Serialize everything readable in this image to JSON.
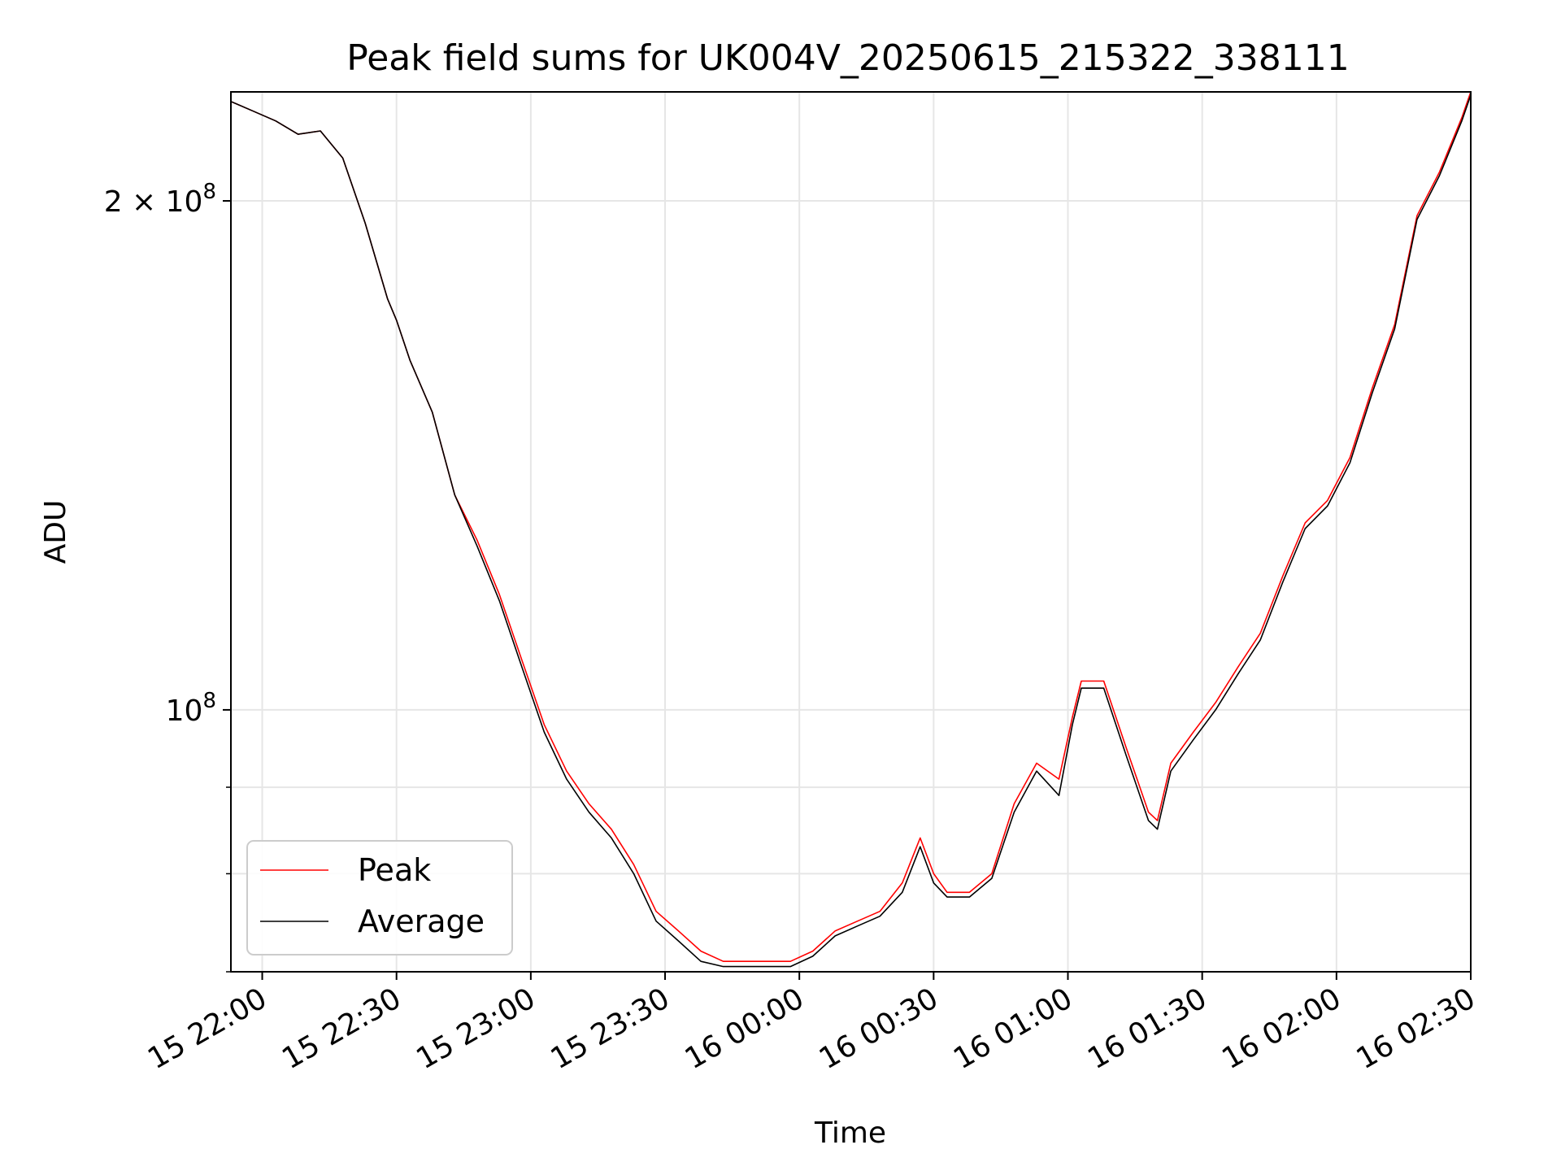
{
  "chart_data": {
    "type": "line",
    "title": "Peak field sums for UK004V_20250615_215322_338111",
    "xlabel": "Time",
    "ylabel": "ADU",
    "yscale": "log",
    "grid": true,
    "legend_position": "lower-left",
    "xlim": [
      "2025-06-15 21:53",
      "2025-06-16 02:30"
    ],
    "ylim": [
      70000000,
      232000000
    ],
    "x_ticks": [
      "15 22:00",
      "15 22:30",
      "15 23:00",
      "15 23:30",
      "16 00:00",
      "16 00:30",
      "16 01:00",
      "16 01:30",
      "16 02:00",
      "16 02:30"
    ],
    "y_tick_labels": [
      {
        "value": 200000000,
        "base": "2 × 10",
        "exp": "8"
      },
      {
        "value": 100000000,
        "base": "10",
        "exp": "8"
      }
    ],
    "y_minor_ticks": [
      90000000,
      80000000,
      70000000
    ],
    "x": [
      "21:53",
      "21:58",
      "22:03",
      "22:08",
      "22:13",
      "22:18",
      "22:23",
      "22:28",
      "22:30",
      "22:33",
      "22:38",
      "22:43",
      "22:48",
      "22:53",
      "22:58",
      "23:03",
      "23:08",
      "23:13",
      "23:18",
      "23:23",
      "23:28",
      "23:33",
      "23:38",
      "23:43",
      "23:48",
      "23:53",
      "23:58",
      "00:03",
      "00:08",
      "00:13",
      "00:18",
      "00:23",
      "00:27",
      "00:30",
      "00:33",
      "00:38",
      "00:43",
      "00:48",
      "00:53",
      "00:58",
      "01:01",
      "01:03",
      "01:08",
      "01:13",
      "01:18",
      "01:20",
      "01:23",
      "01:28",
      "01:33",
      "01:38",
      "01:43",
      "01:48",
      "01:53",
      "01:58",
      "02:03",
      "02:08",
      "02:13",
      "02:18",
      "02:23",
      "02:28",
      "02:30"
    ],
    "series": [
      {
        "name": "Peak",
        "color": "#ff0000",
        "values": [
          229000000,
          226000000,
          223000000,
          219000000,
          220000000,
          212000000,
          194000000,
          175000000,
          170000000,
          161000000,
          150000000,
          134000000,
          126000000,
          117000000,
          107000000,
          98000000,
          92000000,
          88000000,
          85000000,
          81000000,
          76000000,
          74000000,
          72000000,
          71000000,
          71000000,
          71000000,
          71000000,
          72000000,
          74000000,
          75000000,
          76000000,
          79000000,
          84000000,
          80000000,
          78000000,
          78000000,
          80000000,
          88000000,
          93000000,
          91000000,
          99000000,
          104000000,
          104000000,
          95000000,
          87000000,
          86000000,
          93000000,
          97000000,
          101000000,
          106000000,
          111000000,
          120000000,
          129000000,
          133000000,
          141000000,
          155000000,
          169000000,
          196000000,
          208000000,
          224000000,
          232000000
        ]
      },
      {
        "name": "Average",
        "color": "#000000",
        "values": [
          229000000,
          226000000,
          223000000,
          219000000,
          220000000,
          212000000,
          194000000,
          175000000,
          170000000,
          161000000,
          150000000,
          134000000,
          125000000,
          116000000,
          106000000,
          97000000,
          91000000,
          87000000,
          84000000,
          80000000,
          75000000,
          73000000,
          71000000,
          70500000,
          70500000,
          70500000,
          70500000,
          71500000,
          73500000,
          74500000,
          75500000,
          78000000,
          83000000,
          79000000,
          77500000,
          77500000,
          79500000,
          87000000,
          92000000,
          89000000,
          98000000,
          103000000,
          103000000,
          94000000,
          86000000,
          85000000,
          92000000,
          96000000,
          100000000,
          105000000,
          110000000,
          119000000,
          128000000,
          132000000,
          140000000,
          154000000,
          168000000,
          195000000,
          207000000,
          223000000,
          231000000
        ]
      }
    ]
  }
}
